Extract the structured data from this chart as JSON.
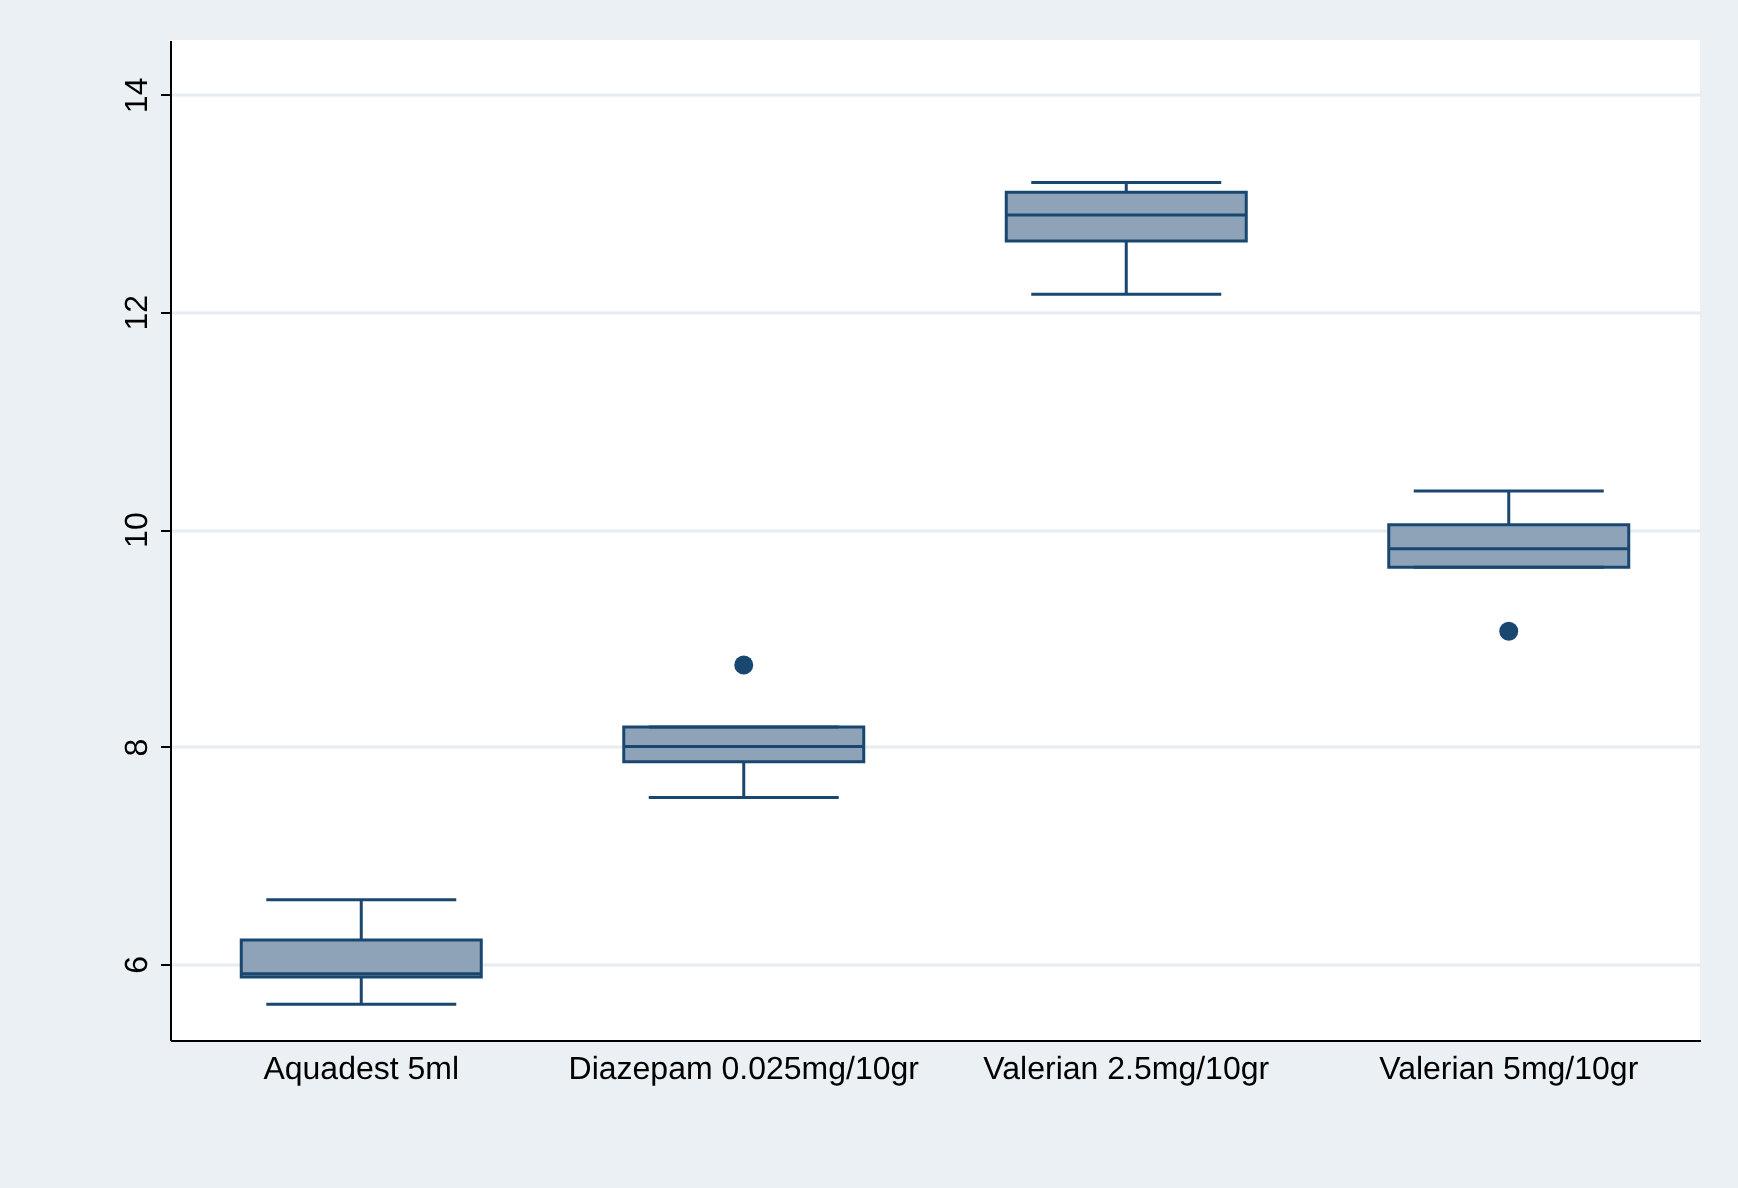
{
  "chart_data": {
    "type": "box",
    "categories": [
      "Aquadest 5ml",
      "Diazepam 0.025mg/10gr",
      "Valerian 2.5mg/10gr",
      "Valerian 5mg/10gr"
    ],
    "boxes": [
      {
        "low": 5.63,
        "q1": 5.88,
        "median": 5.91,
        "q3": 6.22,
        "high": 6.59
      },
      {
        "low": 7.53,
        "q1": 7.86,
        "median": 8.0,
        "q3": 8.18,
        "high": 8.18,
        "outliers": [
          8.75
        ]
      },
      {
        "low": 12.16,
        "q1": 12.65,
        "median": 12.89,
        "q3": 13.1,
        "high": 13.19
      },
      {
        "low": 9.65,
        "q1": 9.65,
        "median": 9.82,
        "q3": 10.04,
        "high": 10.35,
        "outliers": [
          9.06
        ]
      }
    ],
    "color": "#8fa3b8",
    "ylim": [
      5.3,
      14.5
    ],
    "yticks": [
      6,
      8,
      10,
      12,
      14
    ],
    "grid": "y",
    "marker": "circle"
  }
}
